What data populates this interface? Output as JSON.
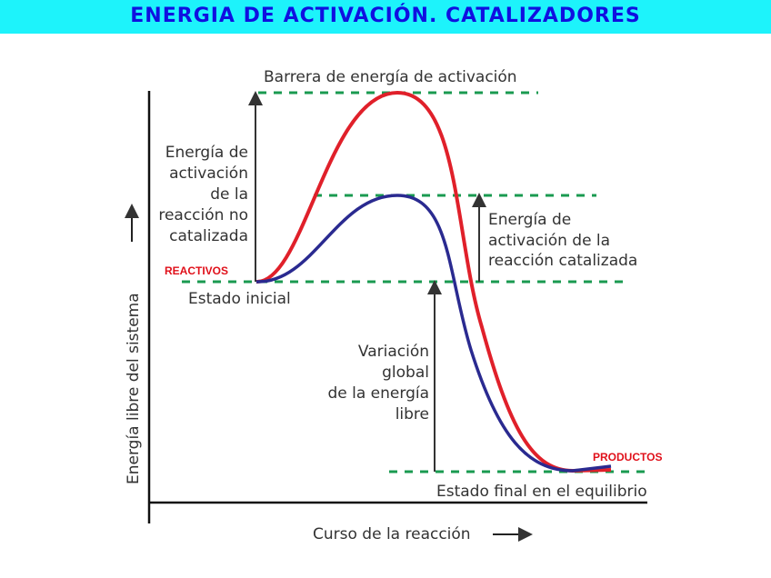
{
  "title": "ENERGIA DE ACTIVACIÓN. CATALIZADORES",
  "diagram": {
    "barrier_label": "Barrera de energía de activación",
    "uncatalyzed_label": [
      "Energía de",
      "activación",
      "de la",
      "reacción no",
      "catalizada"
    ],
    "catalyzed_label": [
      "Energía de",
      "activación de la",
      "reacción catalizada"
    ],
    "reactants_tag": "REACTIVOS",
    "initial_state": "Estado inicial",
    "free_energy_change": [
      "Variación",
      "global",
      "de la energía",
      "libre"
    ],
    "products_tag": "PRODUCTOS",
    "final_state": "Estado final en el equilibrio",
    "y_axis_label": "Energía libre del sistema",
    "x_axis_label": "Curso de la reacción",
    "colors": {
      "uncatalyzed": "#e0202a",
      "catalyzed": "#2a2a90",
      "levels": "#1a9a50"
    }
  }
}
